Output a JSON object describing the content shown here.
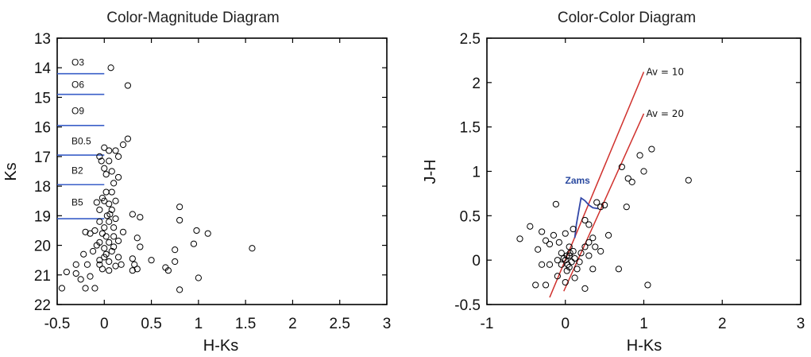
{
  "chart_data": [
    {
      "type": "scatter",
      "title": "Color-Magnitude Diagram",
      "xlabel": "H-Ks",
      "ylabel": "Ks",
      "xlim": [
        -0.5,
        3
      ],
      "ylim": [
        13,
        22
      ],
      "y_inverted": true,
      "x_ticks": [
        "-0.5",
        "0",
        "0.5",
        "1",
        "1.5",
        "2",
        "2.5",
        "3"
      ],
      "y_ticks": [
        "13",
        "14",
        "15",
        "16",
        "17",
        "18",
        "19",
        "20",
        "21",
        "22"
      ],
      "grid": false,
      "marker": "open-circle",
      "spectral_type_lines": [
        {
          "label": "O3",
          "ks": 14.2
        },
        {
          "label": "O6",
          "ks": 14.9
        },
        {
          "label": "O9",
          "ks": 15.95
        },
        {
          "label": "B0.5",
          "ks": 16.95
        },
        {
          "label": "B2",
          "ks": 17.95
        },
        {
          "label": "B5",
          "ks": 19.1
        }
      ],
      "line_color": "#3a5fc8",
      "points": [
        [
          0.07,
          14.0
        ],
        [
          0.25,
          14.6
        ],
        [
          0.25,
          16.4
        ],
        [
          0.2,
          16.6
        ],
        [
          0.12,
          16.8
        ],
        [
          0.15,
          17.0
        ],
        [
          0.0,
          16.7
        ],
        [
          0.05,
          16.8
        ],
        [
          -0.05,
          17.0
        ],
        [
          -0.03,
          17.15
        ],
        [
          0.05,
          17.15
        ],
        [
          0.0,
          17.4
        ],
        [
          0.08,
          17.5
        ],
        [
          0.02,
          17.6
        ],
        [
          0.15,
          17.7
        ],
        [
          0.1,
          17.9
        ],
        [
          0.02,
          18.2
        ],
        [
          0.08,
          18.2
        ],
        [
          -0.02,
          18.4
        ],
        [
          0.0,
          18.5
        ],
        [
          0.05,
          18.6
        ],
        [
          -0.05,
          18.8
        ],
        [
          0.08,
          18.8
        ],
        [
          0.03,
          19.0
        ],
        [
          0.12,
          19.1
        ],
        [
          -0.05,
          19.2
        ],
        [
          0.05,
          19.2
        ],
        [
          0.0,
          19.4
        ],
        [
          -0.1,
          19.5
        ],
        [
          -0.2,
          19.55
        ],
        [
          -0.15,
          19.6
        ],
        [
          0.02,
          19.7
        ],
        [
          0.1,
          19.7
        ],
        [
          -0.05,
          19.9
        ],
        [
          0.05,
          19.9
        ],
        [
          0.0,
          20.1
        ],
        [
          -0.12,
          20.2
        ],
        [
          0.08,
          20.2
        ],
        [
          -0.22,
          20.3
        ],
        [
          0.0,
          20.4
        ],
        [
          0.15,
          20.4
        ],
        [
          -0.05,
          20.5
        ],
        [
          0.05,
          20.55
        ],
        [
          -0.3,
          20.65
        ],
        [
          -0.18,
          20.65
        ],
        [
          0.12,
          20.7
        ],
        [
          -0.02,
          20.8
        ],
        [
          0.05,
          20.85
        ],
        [
          -0.4,
          20.9
        ],
        [
          -0.3,
          20.95
        ],
        [
          -0.15,
          21.05
        ],
        [
          -0.25,
          21.15
        ],
        [
          -0.1,
          21.45
        ],
        [
          -0.2,
          21.45
        ],
        [
          -0.45,
          21.45
        ],
        [
          0.3,
          18.95
        ],
        [
          0.38,
          19.05
        ],
        [
          0.35,
          19.75
        ],
        [
          0.38,
          20.05
        ],
        [
          0.3,
          20.45
        ],
        [
          0.32,
          20.65
        ],
        [
          0.35,
          20.8
        ],
        [
          0.3,
          20.85
        ],
        [
          0.5,
          20.5
        ],
        [
          0.65,
          20.75
        ],
        [
          0.68,
          20.85
        ],
        [
          0.75,
          20.15
        ],
        [
          0.75,
          20.55
        ],
        [
          0.8,
          18.7
        ],
        [
          0.8,
          19.15
        ],
        [
          0.95,
          19.95
        ],
        [
          0.98,
          19.5
        ],
        [
          1.1,
          19.6
        ],
        [
          1.0,
          21.1
        ],
        [
          1.57,
          20.1
        ],
        [
          0.8,
          21.5
        ],
        [
          0.18,
          20.65
        ],
        [
          -0.05,
          20.65
        ],
        [
          0.02,
          20.3
        ],
        [
          -0.08,
          20.0
        ],
        [
          0.1,
          20.05
        ],
        [
          0.15,
          19.85
        ],
        [
          -0.02,
          19.6
        ],
        [
          0.1,
          19.4
        ],
        [
          0.2,
          19.55
        ],
        [
          0.06,
          18.95
        ],
        [
          -0.08,
          18.55
        ],
        [
          0.12,
          18.5
        ]
      ]
    },
    {
      "type": "scatter",
      "title": "Color-Color Diagram",
      "xlabel": "H-Ks",
      "ylabel": "J-H",
      "xlim": [
        -1,
        3
      ],
      "ylim": [
        -0.5,
        2.5
      ],
      "x_ticks": [
        "-1",
        "0",
        "1",
        "2",
        "3"
      ],
      "y_ticks": [
        "-0.5",
        "0",
        "0.5",
        "1",
        "1.5",
        "2",
        "2.5"
      ],
      "grid": false,
      "marker": "open-circle",
      "reddening_lines": [
        {
          "label": "Av = 10",
          "from": [
            -0.2,
            -0.42
          ],
          "to": [
            1.0,
            2.12
          ]
        },
        {
          "label": "Av = 20",
          "from": [
            -0.02,
            -0.35
          ],
          "to": [
            1.0,
            1.65
          ]
        }
      ],
      "reddening_color": "#d0312d",
      "zams": {
        "label": "Zams",
        "color": "#3348a8",
        "curve": [
          [
            0.12,
            0.25
          ],
          [
            0.14,
            0.4
          ],
          [
            0.17,
            0.55
          ],
          [
            0.2,
            0.7
          ],
          [
            0.25,
            0.67
          ],
          [
            0.3,
            0.62
          ],
          [
            0.35,
            0.59
          ],
          [
            0.42,
            0.58
          ]
        ]
      },
      "points": [
        [
          -0.58,
          0.24
        ],
        [
          -0.45,
          0.38
        ],
        [
          -0.3,
          0.32
        ],
        [
          -0.25,
          0.22
        ],
        [
          -0.2,
          0.18
        ],
        [
          -0.35,
          0.12
        ],
        [
          -0.15,
          0.28
        ],
        [
          -0.3,
          -0.05
        ],
        [
          -0.2,
          -0.05
        ],
        [
          -0.38,
          -0.28
        ],
        [
          -0.1,
          -0.18
        ],
        [
          0.0,
          -0.25
        ],
        [
          -0.05,
          0.08
        ],
        [
          0.05,
          0.05
        ],
        [
          0.1,
          0.1
        ],
        [
          0.0,
          0.0
        ],
        [
          -0.05,
          -0.05
        ],
        [
          0.05,
          -0.08
        ],
        [
          0.12,
          0.02
        ],
        [
          0.15,
          -0.1
        ],
        [
          -0.08,
          0.2
        ],
        [
          0.0,
          0.3
        ],
        [
          0.1,
          0.35
        ],
        [
          0.05,
          0.15
        ],
        [
          0.02,
          0.05
        ],
        [
          -0.02,
          0.02
        ],
        [
          0.08,
          -0.02
        ],
        [
          0.03,
          -0.05
        ],
        [
          0.2,
          0.08
        ],
        [
          0.25,
          0.15
        ],
        [
          0.3,
          0.2
        ],
        [
          0.35,
          0.25
        ],
        [
          0.3,
          0.4
        ],
        [
          0.25,
          0.45
        ],
        [
          0.3,
          0.05
        ],
        [
          0.38,
          0.15
        ],
        [
          0.45,
          0.1
        ],
        [
          0.35,
          -0.1
        ],
        [
          0.25,
          -0.32
        ],
        [
          0.4,
          0.65
        ],
        [
          0.45,
          0.6
        ],
        [
          0.5,
          0.62
        ],
        [
          0.72,
          1.05
        ],
        [
          0.8,
          0.92
        ],
        [
          0.85,
          0.88
        ],
        [
          0.78,
          0.6
        ],
        [
          0.68,
          -0.1
        ],
        [
          1.0,
          1.0
        ],
        [
          0.95,
          1.18
        ],
        [
          1.1,
          1.25
        ],
        [
          1.05,
          -0.28
        ],
        [
          1.57,
          0.9
        ],
        [
          0.55,
          0.28
        ],
        [
          -0.12,
          0.63
        ],
        [
          -0.25,
          -0.28
        ],
        [
          0.18,
          -0.02
        ],
        [
          0.12,
          -0.2
        ],
        [
          -0.1,
          0.0
        ],
        [
          0.02,
          -0.12
        ],
        [
          0.06,
          0.08
        ]
      ]
    }
  ]
}
